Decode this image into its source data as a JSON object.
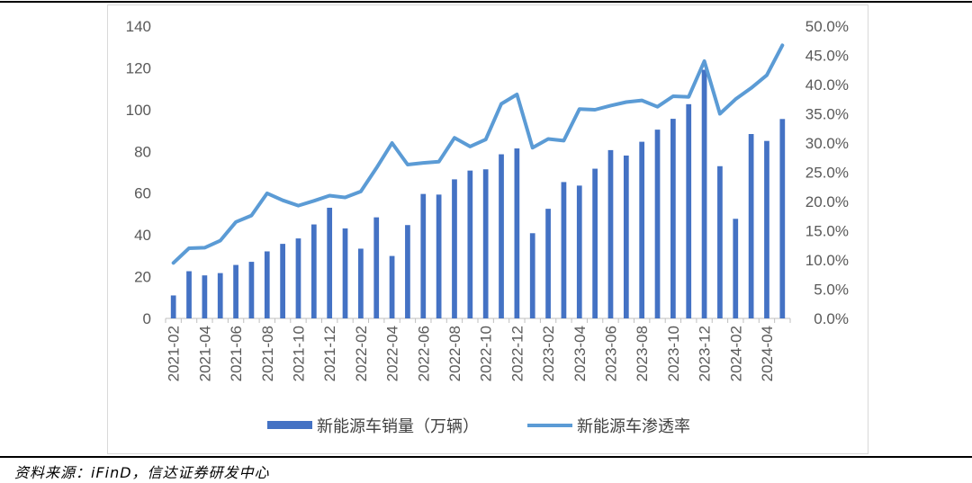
{
  "chart_data": {
    "type": "bar+line",
    "categories": [
      "2021-02",
      "2021-03",
      "2021-04",
      "2021-05",
      "2021-06",
      "2021-07",
      "2021-08",
      "2021-09",
      "2021-10",
      "2021-11",
      "2021-12",
      "2022-01",
      "2022-02",
      "2022-03",
      "2022-04",
      "2022-05",
      "2022-06",
      "2022-07",
      "2022-08",
      "2022-09",
      "2022-10",
      "2022-11",
      "2022-12",
      "2023-01",
      "2023-02",
      "2023-03",
      "2023-04",
      "2023-05",
      "2023-06",
      "2023-07",
      "2023-08",
      "2023-09",
      "2023-10",
      "2023-11",
      "2023-12",
      "2024-01",
      "2024-02",
      "2024-03",
      "2024-04",
      "2024-05"
    ],
    "x_tick_labels": [
      "2021-02",
      "2021-04",
      "2021-06",
      "2021-08",
      "2021-10",
      "2021-12",
      "2022-02",
      "2022-04",
      "2022-06",
      "2022-08",
      "2022-10",
      "2022-12",
      "2023-02",
      "2023-04",
      "2023-06",
      "2023-08",
      "2023-10",
      "2023-12",
      "2024-02",
      "2024-04"
    ],
    "series": [
      {
        "name": "新能源车销量（万辆）",
        "type": "bar",
        "axis": "left",
        "color": "#4472C4",
        "values": [
          11,
          22.6,
          20.6,
          21.7,
          25.6,
          27.1,
          32.1,
          35.7,
          38.3,
          45,
          53,
          43.1,
          33.4,
          48.4,
          29.9,
          44.7,
          59.6,
          59.3,
          66.6,
          70.8,
          71.4,
          78.6,
          81.4,
          40.8,
          52.5,
          65.3,
          63.6,
          71.7,
          80.6,
          78,
          84.6,
          90.4,
          95.6,
          102.6,
          119.1,
          72.9,
          47.7,
          88.3,
          85,
          95.5
        ]
      },
      {
        "name": "新能源车渗透率",
        "type": "line",
        "axis": "right",
        "color": "#5B9BD5",
        "values": [
          0.095,
          0.12,
          0.121,
          0.133,
          0.165,
          0.176,
          0.214,
          0.202,
          0.193,
          0.201,
          0.21,
          0.207,
          0.217,
          0.257,
          0.3,
          0.263,
          0.266,
          0.268,
          0.309,
          0.294,
          0.306,
          0.367,
          0.383,
          0.292,
          0.307,
          0.304,
          0.358,
          0.357,
          0.364,
          0.37,
          0.373,
          0.362,
          0.38,
          0.379,
          0.44,
          0.35,
          0.375,
          0.394,
          0.416,
          0.467
        ]
      }
    ],
    "y_left": {
      "min": 0,
      "max": 140,
      "ticks": [
        0,
        20,
        40,
        60,
        80,
        100,
        120,
        140
      ],
      "tick_labels": [
        "0",
        "20",
        "40",
        "60",
        "80",
        "100",
        "120",
        "140"
      ]
    },
    "y_right": {
      "min": 0,
      "max": 0.5,
      "ticks": [
        0,
        0.05,
        0.1,
        0.15,
        0.2,
        0.25,
        0.3,
        0.35,
        0.4,
        0.45,
        0.5
      ],
      "tick_labels": [
        "0.0%",
        "5.0%",
        "10.0%",
        "15.0%",
        "20.0%",
        "25.0%",
        "30.0%",
        "35.0%",
        "40.0%",
        "45.0%",
        "50.0%"
      ]
    },
    "grid": false,
    "legend_position": "bottom"
  },
  "source_note": "资料来源：iFinD，信达证券研发中心"
}
